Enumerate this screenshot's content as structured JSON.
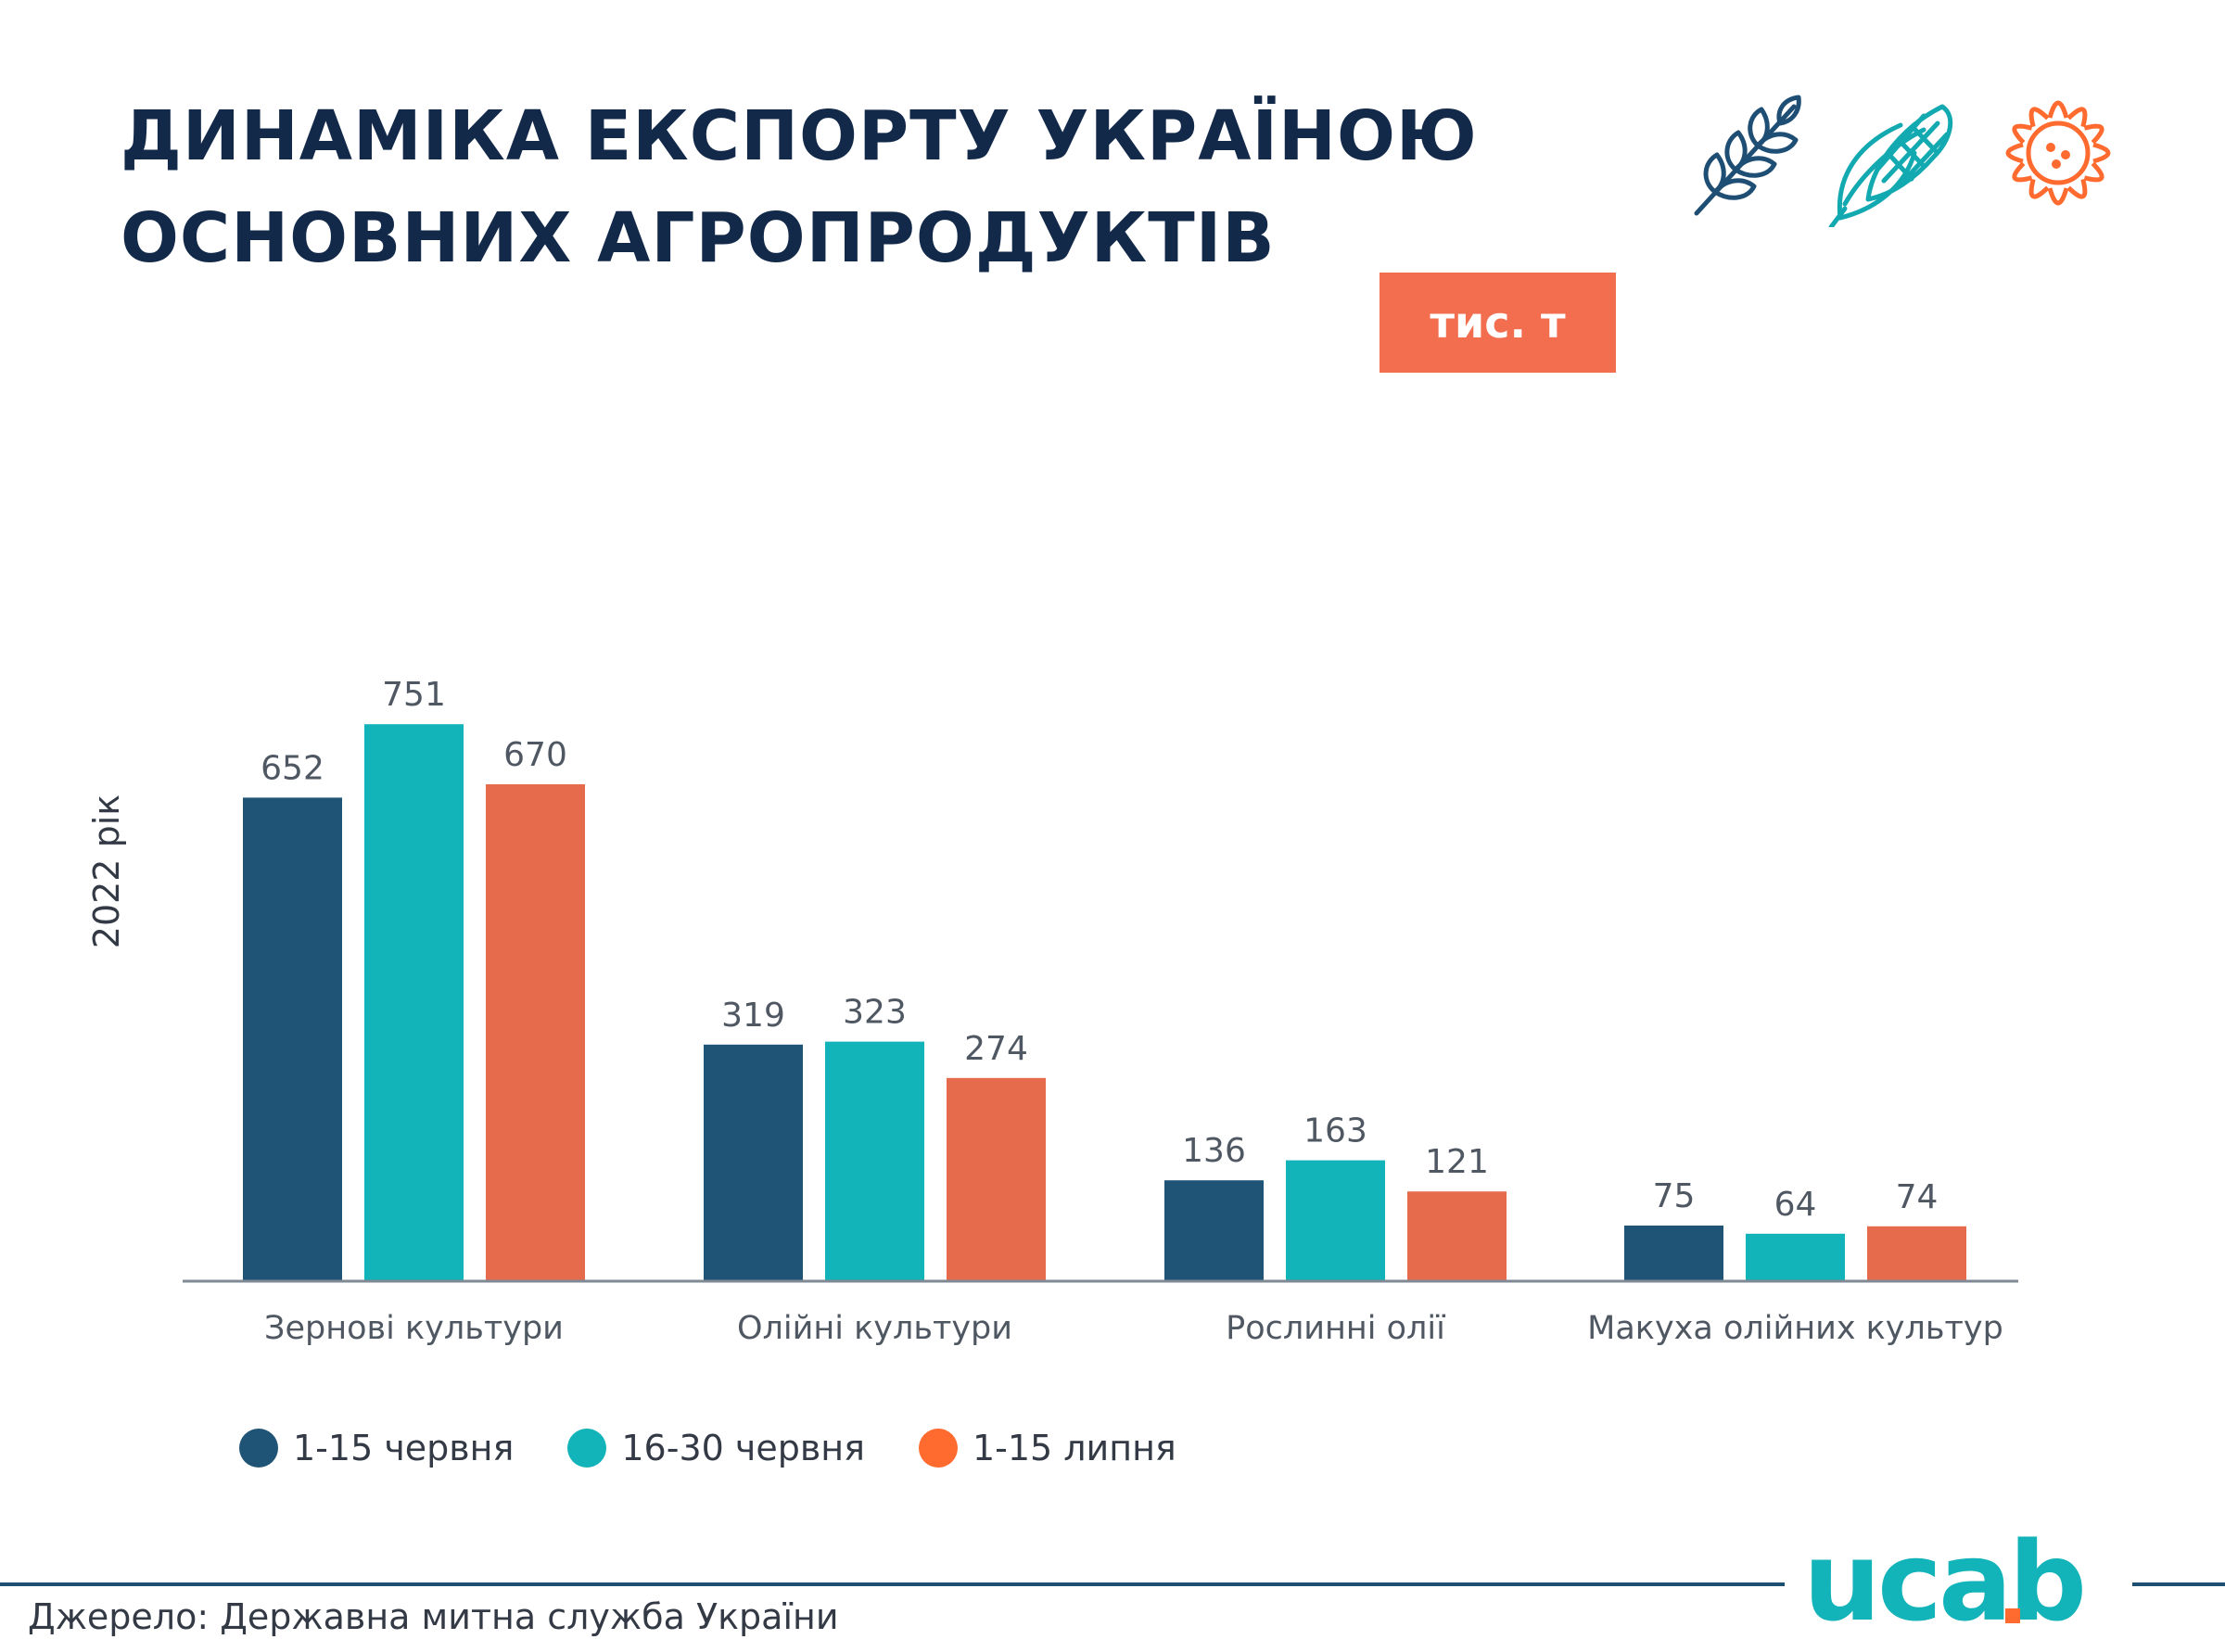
{
  "header": {
    "title_line1": "ДИНАМІКА ЕКСПОРТУ УКРАЇНОЮ",
    "title_line2": "ОСНОВНИХ АГРОПРОДУКТІВ",
    "unit_badge": "тис. т",
    "icons": [
      "wheat-icon",
      "corn-icon",
      "sunflower-icon"
    ]
  },
  "chart_data": {
    "type": "bar",
    "title": "ДИНАМІКА ЕКСПОРТУ УКРАЇНОЮ ОСНОВНИХ АГРОПРОДУКТІВ",
    "unit": "тис. т",
    "ylabel": "2022 рік",
    "xlabel": "",
    "categories": [
      "Зернові культури",
      "Олійні культури",
      "Рослинні олії",
      "Макуха олійних культур"
    ],
    "series": [
      {
        "name": "1-15 червня",
        "color": "#1f5476",
        "values": [
          652,
          319,
          136,
          75
        ]
      },
      {
        "name": "16-30 червня",
        "color": "#12b3b9",
        "values": [
          751,
          323,
          163,
          64
        ]
      },
      {
        "name": "1-15 липня",
        "color": "#e66b4d",
        "values": [
          670,
          274,
          121,
          74
        ]
      }
    ],
    "ylim": [
      0,
      800
    ],
    "grid": false,
    "legend_position": "bottom-left"
  },
  "legend": {
    "dot_colors": [
      "#1f5476",
      "#12b3b9",
      "#ff6a2f"
    ]
  },
  "footer": {
    "source": "Джерело: Державна митна служба України",
    "logo_text": "ucab",
    "logo_colors": {
      "primary": "#12b3b9",
      "accent": "#ff6a2f",
      "line": "#1d4f73"
    }
  }
}
